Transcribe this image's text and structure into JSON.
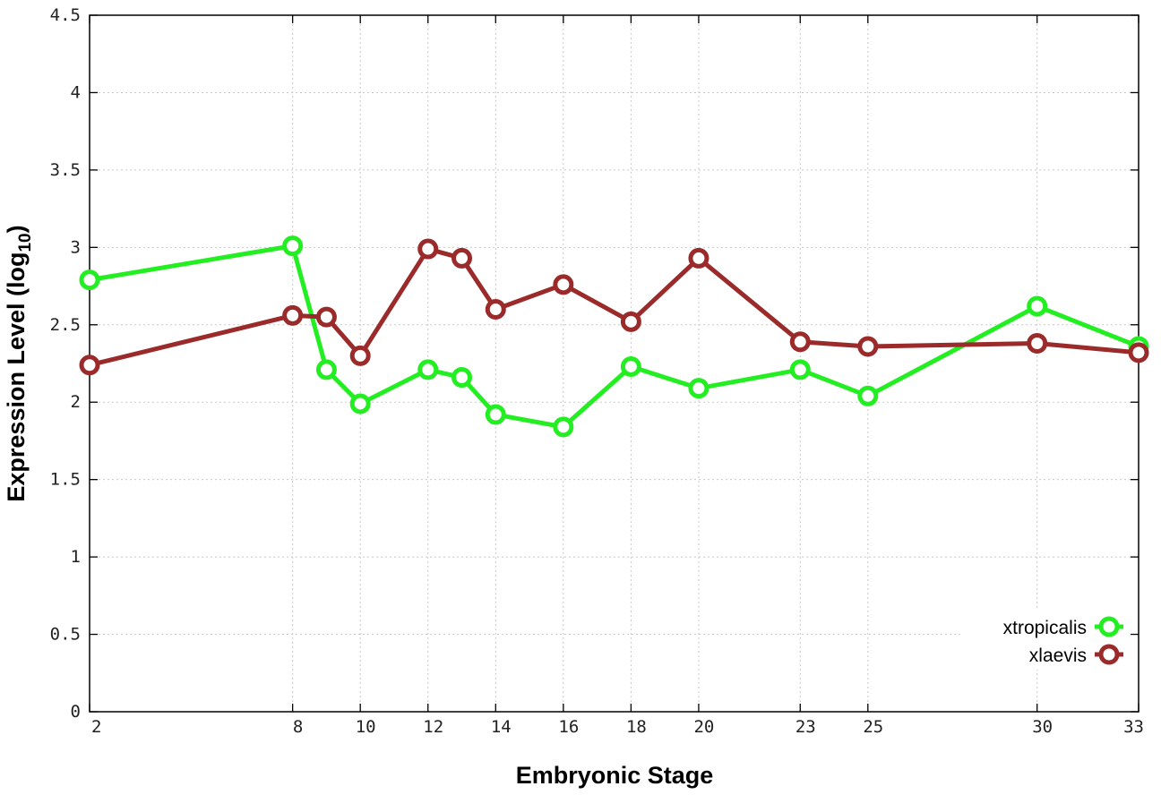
{
  "chart_data": {
    "type": "line",
    "xlabel": "Embryonic Stage",
    "ylabel": "Expression Level (log",
    "ylabel_subscript": "10",
    "ylabel_close": ")",
    "x_ticks": [
      "2",
      "8",
      "10",
      "12",
      "14",
      "16",
      "18",
      "20",
      "23",
      "25",
      "30",
      "33"
    ],
    "y_ticks": [
      "0",
      "0.5",
      "1",
      "1.5",
      "2",
      "2.5",
      "3",
      "3.5",
      "4",
      "4.5"
    ],
    "xlim": [
      2,
      33
    ],
    "ylim": [
      0,
      4.5
    ],
    "grid": true,
    "legend_position": "bottom-right",
    "x": [
      2,
      8,
      9,
      10,
      12,
      13,
      14,
      16,
      18,
      20,
      23,
      25,
      30,
      33
    ],
    "series": [
      {
        "name": "xtropicalis",
        "color": "#22ee22",
        "values": [
          2.79,
          3.01,
          2.21,
          1.99,
          2.21,
          2.16,
          1.92,
          1.84,
          2.23,
          2.09,
          2.21,
          2.04,
          2.62,
          2.36
        ]
      },
      {
        "name": "xlaevis",
        "color": "#9b2b2b",
        "values": [
          2.24,
          2.56,
          2.55,
          2.3,
          2.99,
          2.93,
          2.6,
          2.76,
          2.52,
          2.93,
          2.39,
          2.36,
          2.38,
          2.32
        ]
      }
    ]
  }
}
